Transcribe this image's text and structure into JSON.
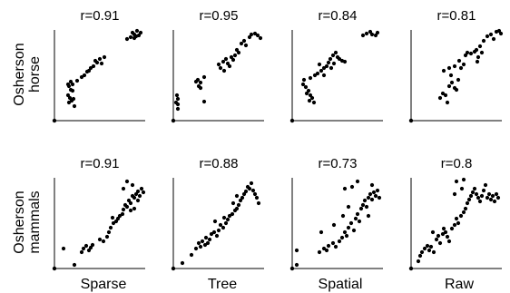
{
  "figure": {
    "col_labels": [
      "Sparse",
      "Tree",
      "Spatial",
      "Raw"
    ],
    "row_labels": [
      {
        "line1": "Osherson",
        "line2": "horse"
      },
      {
        "line1": "Osherson",
        "line2": "mammals"
      }
    ]
  },
  "chart_data": [
    {
      "type": "scatter",
      "title": "r=0.91",
      "row": "Osherson horse",
      "col": "Sparse",
      "xlim": [
        0,
        1
      ],
      "ylim": [
        0,
        1
      ],
      "points": [
        [
          0.16,
          0.38
        ],
        [
          0.2,
          0.4
        ],
        [
          0.18,
          0.34
        ],
        [
          0.15,
          0.28
        ],
        [
          0.17,
          0.25
        ],
        [
          0.21,
          0.24
        ],
        [
          0.16,
          0.2
        ],
        [
          0.19,
          0.22
        ],
        [
          0.2,
          0.33
        ],
        [
          0.22,
          0.16
        ],
        [
          0.15,
          0.4
        ],
        [
          0.18,
          0.43
        ],
        [
          0.25,
          0.44
        ],
        [
          0.3,
          0.48
        ],
        [
          0.33,
          0.5
        ],
        [
          0.36,
          0.54
        ],
        [
          0.4,
          0.58
        ],
        [
          0.43,
          0.6
        ],
        [
          0.47,
          0.64
        ],
        [
          0.5,
          0.68
        ],
        [
          0.52,
          0.63
        ],
        [
          0.45,
          0.66
        ],
        [
          0.38,
          0.55
        ],
        [
          0.55,
          0.7
        ],
        [
          0.8,
          0.9
        ],
        [
          0.84,
          0.92
        ],
        [
          0.88,
          0.95
        ],
        [
          0.9,
          0.93
        ],
        [
          0.93,
          0.94
        ],
        [
          0.86,
          0.97
        ],
        [
          0.91,
          0.99
        ],
        [
          0.88,
          0.91
        ],
        [
          0.95,
          0.97
        ]
      ]
    },
    {
      "type": "scatter",
      "title": "r=0.95",
      "row": "Osherson horse",
      "col": "Tree",
      "xlim": [
        0,
        1
      ],
      "ylim": [
        0,
        1
      ],
      "points": [
        [
          0.04,
          0.28
        ],
        [
          0.05,
          0.24
        ],
        [
          0.05,
          0.18
        ],
        [
          0.03,
          0.2
        ],
        [
          0.05,
          0.13
        ],
        [
          0.25,
          0.43
        ],
        [
          0.27,
          0.45
        ],
        [
          0.3,
          0.42
        ],
        [
          0.28,
          0.38
        ],
        [
          0.3,
          0.36
        ],
        [
          0.34,
          0.21
        ],
        [
          0.34,
          0.48
        ],
        [
          0.5,
          0.62
        ],
        [
          0.52,
          0.58
        ],
        [
          0.55,
          0.65
        ],
        [
          0.56,
          0.55
        ],
        [
          0.58,
          0.68
        ],
        [
          0.6,
          0.63
        ],
        [
          0.62,
          0.6
        ],
        [
          0.64,
          0.7
        ],
        [
          0.66,
          0.67
        ],
        [
          0.68,
          0.72
        ],
        [
          0.7,
          0.78
        ],
        [
          0.72,
          0.75
        ],
        [
          0.75,
          0.85
        ],
        [
          0.78,
          0.88
        ],
        [
          0.8,
          0.83
        ],
        [
          0.84,
          0.92
        ],
        [
          0.86,
          0.95
        ],
        [
          0.9,
          0.96
        ],
        [
          0.93,
          0.94
        ],
        [
          0.96,
          0.91
        ]
      ]
    },
    {
      "type": "scatter",
      "title": "r=0.84",
      "row": "Osherson horse",
      "col": "Spatial",
      "xlim": [
        0,
        1
      ],
      "ylim": [
        0,
        1
      ],
      "points": [
        [
          0.12,
          0.4
        ],
        [
          0.15,
          0.37
        ],
        [
          0.18,
          0.33
        ],
        [
          0.16,
          0.3
        ],
        [
          0.2,
          0.28
        ],
        [
          0.22,
          0.25
        ],
        [
          0.19,
          0.22
        ],
        [
          0.24,
          0.2
        ],
        [
          0.13,
          0.45
        ],
        [
          0.2,
          0.47
        ],
        [
          0.25,
          0.5
        ],
        [
          0.28,
          0.52
        ],
        [
          0.32,
          0.55
        ],
        [
          0.35,
          0.58
        ],
        [
          0.38,
          0.6
        ],
        [
          0.4,
          0.64
        ],
        [
          0.42,
          0.68
        ],
        [
          0.45,
          0.72
        ],
        [
          0.48,
          0.75
        ],
        [
          0.5,
          0.7
        ],
        [
          0.52,
          0.68
        ],
        [
          0.55,
          0.66
        ],
        [
          0.58,
          0.65
        ],
        [
          0.46,
          0.63
        ],
        [
          0.43,
          0.58
        ],
        [
          0.3,
          0.62
        ],
        [
          0.35,
          0.5
        ],
        [
          0.78,
          0.94
        ],
        [
          0.82,
          0.96
        ],
        [
          0.86,
          0.98
        ],
        [
          0.88,
          0.95
        ],
        [
          0.92,
          0.94
        ],
        [
          0.94,
          0.97
        ]
      ]
    },
    {
      "type": "scatter",
      "title": "r=0.81",
      "row": "Osherson horse",
      "col": "Raw",
      "xlim": [
        0,
        1
      ],
      "ylim": [
        0,
        1
      ],
      "points": [
        [
          0.32,
          0.25
        ],
        [
          0.35,
          0.3
        ],
        [
          0.38,
          0.28
        ],
        [
          0.4,
          0.2
        ],
        [
          0.42,
          0.38
        ],
        [
          0.45,
          0.42
        ],
        [
          0.48,
          0.36
        ],
        [
          0.5,
          0.34
        ],
        [
          0.52,
          0.45
        ],
        [
          0.44,
          0.5
        ],
        [
          0.36,
          0.55
        ],
        [
          0.42,
          0.58
        ],
        [
          0.48,
          0.6
        ],
        [
          0.55,
          0.58
        ],
        [
          0.58,
          0.62
        ],
        [
          0.6,
          0.72
        ],
        [
          0.62,
          0.75
        ],
        [
          0.66,
          0.74
        ],
        [
          0.7,
          0.76
        ],
        [
          0.72,
          0.78
        ],
        [
          0.74,
          0.7
        ],
        [
          0.73,
          0.65
        ],
        [
          0.76,
          0.82
        ],
        [
          0.78,
          0.75
        ],
        [
          0.8,
          0.88
        ],
        [
          0.84,
          0.93
        ],
        [
          0.88,
          0.95
        ],
        [
          0.91,
          0.9
        ],
        [
          0.94,
          0.98
        ],
        [
          0.97,
          0.99
        ],
        [
          0.99,
          0.96
        ],
        [
          0.53,
          0.66
        ]
      ]
    },
    {
      "type": "scatter",
      "title": "r=0.91",
      "row": "Osherson mammals",
      "col": "Sparse",
      "xlim": [
        0,
        1
      ],
      "ylim": [
        0,
        1
      ],
      "points": [
        [
          0.1,
          0.22
        ],
        [
          0.22,
          0.04
        ],
        [
          0.3,
          0.18
        ],
        [
          0.32,
          0.22
        ],
        [
          0.35,
          0.25
        ],
        [
          0.38,
          0.2
        ],
        [
          0.4,
          0.23
        ],
        [
          0.42,
          0.26
        ],
        [
          0.5,
          0.32
        ],
        [
          0.54,
          0.3
        ],
        [
          0.58,
          0.35
        ],
        [
          0.6,
          0.4
        ],
        [
          0.62,
          0.45
        ],
        [
          0.65,
          0.5
        ],
        [
          0.68,
          0.52
        ],
        [
          0.7,
          0.55
        ],
        [
          0.72,
          0.58
        ],
        [
          0.75,
          0.6
        ],
        [
          0.76,
          0.65
        ],
        [
          0.78,
          0.7
        ],
        [
          0.8,
          0.68
        ],
        [
          0.82,
          0.75
        ],
        [
          0.84,
          0.72
        ],
        [
          0.86,
          0.8
        ],
        [
          0.88,
          0.78
        ],
        [
          0.9,
          0.82
        ],
        [
          0.92,
          0.85
        ],
        [
          0.94,
          0.8
        ],
        [
          0.96,
          0.88
        ],
        [
          0.98,
          0.84
        ],
        [
          0.86,
          0.92
        ],
        [
          0.8,
          0.96
        ],
        [
          0.76,
          0.88
        ],
        [
          0.88,
          0.66
        ],
        [
          0.92,
          0.75
        ],
        [
          0.84,
          0.64
        ],
        [
          0.64,
          0.56
        ]
      ]
    },
    {
      "type": "scatter",
      "title": "r=0.88",
      "row": "Osherson mammals",
      "col": "Tree",
      "xlim": [
        0,
        1
      ],
      "ylim": [
        0,
        1
      ],
      "points": [
        [
          0.1,
          0.06
        ],
        [
          0.2,
          0.15
        ],
        [
          0.25,
          0.22
        ],
        [
          0.28,
          0.28
        ],
        [
          0.3,
          0.24
        ],
        [
          0.32,
          0.3
        ],
        [
          0.35,
          0.26
        ],
        [
          0.38,
          0.28
        ],
        [
          0.4,
          0.32
        ],
        [
          0.42,
          0.38
        ],
        [
          0.45,
          0.4
        ],
        [
          0.48,
          0.36
        ],
        [
          0.5,
          0.42
        ],
        [
          0.52,
          0.48
        ],
        [
          0.55,
          0.45
        ],
        [
          0.58,
          0.5
        ],
        [
          0.6,
          0.54
        ],
        [
          0.62,
          0.58
        ],
        [
          0.65,
          0.6
        ],
        [
          0.68,
          0.64
        ],
        [
          0.7,
          0.66
        ],
        [
          0.72,
          0.7
        ],
        [
          0.74,
          0.75
        ],
        [
          0.76,
          0.78
        ],
        [
          0.78,
          0.82
        ],
        [
          0.8,
          0.85
        ],
        [
          0.82,
          0.9
        ],
        [
          0.84,
          0.88
        ],
        [
          0.86,
          0.94
        ],
        [
          0.88,
          0.86
        ],
        [
          0.9,
          0.82
        ],
        [
          0.92,
          0.78
        ],
        [
          0.94,
          0.72
        ],
        [
          0.7,
          0.8
        ],
        [
          0.66,
          0.72
        ],
        [
          0.56,
          0.56
        ],
        [
          0.46,
          0.52
        ],
        [
          0.36,
          0.34
        ]
      ]
    },
    {
      "type": "scatter",
      "title": "r=0.73",
      "row": "Osherson mammals",
      "col": "Spatial",
      "xlim": [
        0,
        1
      ],
      "ylim": [
        0,
        1
      ],
      "points": [
        [
          0.05,
          0.2
        ],
        [
          0.05,
          0.04
        ],
        [
          0.3,
          0.18
        ],
        [
          0.35,
          0.22
        ],
        [
          0.38,
          0.2
        ],
        [
          0.4,
          0.25
        ],
        [
          0.45,
          0.28
        ],
        [
          0.48,
          0.24
        ],
        [
          0.52,
          0.3
        ],
        [
          0.55,
          0.34
        ],
        [
          0.58,
          0.4
        ],
        [
          0.6,
          0.36
        ],
        [
          0.62,
          0.45
        ],
        [
          0.65,
          0.5
        ],
        [
          0.68,
          0.42
        ],
        [
          0.7,
          0.55
        ],
        [
          0.72,
          0.6
        ],
        [
          0.74,
          0.52
        ],
        [
          0.76,
          0.66
        ],
        [
          0.78,
          0.7
        ],
        [
          0.8,
          0.75
        ],
        [
          0.82,
          0.68
        ],
        [
          0.84,
          0.78
        ],
        [
          0.86,
          0.82
        ],
        [
          0.88,
          0.76
        ],
        [
          0.9,
          0.84
        ],
        [
          0.92,
          0.8
        ],
        [
          0.94,
          0.86
        ],
        [
          0.96,
          0.78
        ],
        [
          0.66,
          0.9
        ],
        [
          0.58,
          0.88
        ],
        [
          0.62,
          0.68
        ],
        [
          0.56,
          0.58
        ],
        [
          0.46,
          0.48
        ],
        [
          0.72,
          0.96
        ],
        [
          0.88,
          0.92
        ],
        [
          0.32,
          0.4
        ],
        [
          0.84,
          0.58
        ]
      ]
    },
    {
      "type": "scatter",
      "title": "r=0.8",
      "row": "Osherson mammals",
      "col": "Raw",
      "xlim": [
        0,
        1
      ],
      "ylim": [
        0,
        1
      ],
      "points": [
        [
          0.08,
          0.08
        ],
        [
          0.1,
          0.14
        ],
        [
          0.12,
          0.18
        ],
        [
          0.15,
          0.22
        ],
        [
          0.18,
          0.25
        ],
        [
          0.2,
          0.2
        ],
        [
          0.22,
          0.24
        ],
        [
          0.25,
          0.18
        ],
        [
          0.28,
          0.32
        ],
        [
          0.3,
          0.36
        ],
        [
          0.32,
          0.28
        ],
        [
          0.35,
          0.38
        ],
        [
          0.38,
          0.4
        ],
        [
          0.4,
          0.35
        ],
        [
          0.42,
          0.3
        ],
        [
          0.45,
          0.44
        ],
        [
          0.48,
          0.48
        ],
        [
          0.5,
          0.55
        ],
        [
          0.52,
          0.5
        ],
        [
          0.55,
          0.58
        ],
        [
          0.58,
          0.62
        ],
        [
          0.6,
          0.66
        ],
        [
          0.62,
          0.72
        ],
        [
          0.64,
          0.76
        ],
        [
          0.66,
          0.8
        ],
        [
          0.68,
          0.84
        ],
        [
          0.7,
          0.88
        ],
        [
          0.72,
          0.82
        ],
        [
          0.74,
          0.78
        ],
        [
          0.76,
          0.74
        ],
        [
          0.78,
          0.8
        ],
        [
          0.8,
          0.86
        ],
        [
          0.82,
          0.92
        ],
        [
          0.84,
          0.78
        ],
        [
          0.86,
          0.82
        ],
        [
          0.88,
          0.76
        ],
        [
          0.9,
          0.8
        ],
        [
          0.92,
          0.74
        ],
        [
          0.94,
          0.82
        ],
        [
          0.96,
          0.78
        ],
        [
          0.5,
          0.96
        ],
        [
          0.58,
          0.98
        ],
        [
          0.48,
          0.82
        ],
        [
          0.56,
          0.88
        ],
        [
          0.36,
          0.44
        ],
        [
          0.24,
          0.4
        ]
      ]
    }
  ]
}
